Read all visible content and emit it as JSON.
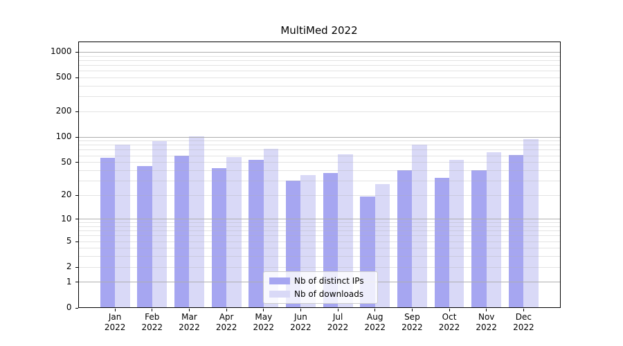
{
  "title": "MultiMed 2022",
  "colors": {
    "distinct_ips": "#a6a6f1",
    "downloads": "#d9d9f7",
    "grid_major": "#adadad",
    "grid_minor": "rgba(176,176,176,0.35)",
    "axis": "#000000",
    "background": "#ffffff"
  },
  "legend": {
    "items": [
      {
        "label": "Nb of distinct IPs",
        "series": "distinct_ips"
      },
      {
        "label": "Nb of downloads",
        "series": "downloads"
      }
    ],
    "position": "lower center"
  },
  "chart_data": {
    "type": "bar",
    "title": "MultiMed 2022",
    "categories": [
      "Jan",
      "Feb",
      "Mar",
      "Apr",
      "May",
      "Jun",
      "Jul",
      "Aug",
      "Sep",
      "Oct",
      "Nov",
      "Dec"
    ],
    "category_year": "2022",
    "series": [
      {
        "name": "Nb of distinct IPs",
        "color": "#a6a6f1",
        "values": [
          56,
          45,
          60,
          42,
          53,
          30,
          37,
          19,
          40,
          32,
          40,
          61
        ]
      },
      {
        "name": "Nb of downloads",
        "color": "#d9d9f7",
        "values": [
          80,
          88,
          102,
          57,
          72,
          35,
          62,
          27,
          80,
          53,
          65,
          94
        ]
      }
    ],
    "xlabel": "",
    "ylabel": "",
    "yscale": "log1p",
    "yticks": [
      0,
      1,
      2,
      5,
      10,
      20,
      50,
      100,
      200,
      500,
      1000
    ],
    "ytick_labels": [
      "0",
      "1",
      "2",
      "5",
      "10",
      "20",
      "50",
      "100",
      "200",
      "500",
      "1000"
    ],
    "minor_yticks": [
      3,
      4,
      6,
      7,
      8,
      9,
      30,
      40,
      60,
      70,
      80,
      90,
      300,
      400,
      600,
      700,
      800,
      900
    ],
    "decade_yticks": [
      1,
      10,
      100,
      1000
    ],
    "ylim": [
      0,
      1300
    ],
    "xlim": [
      -1,
      12
    ],
    "grid": "both",
    "legend_position": "lower center"
  }
}
